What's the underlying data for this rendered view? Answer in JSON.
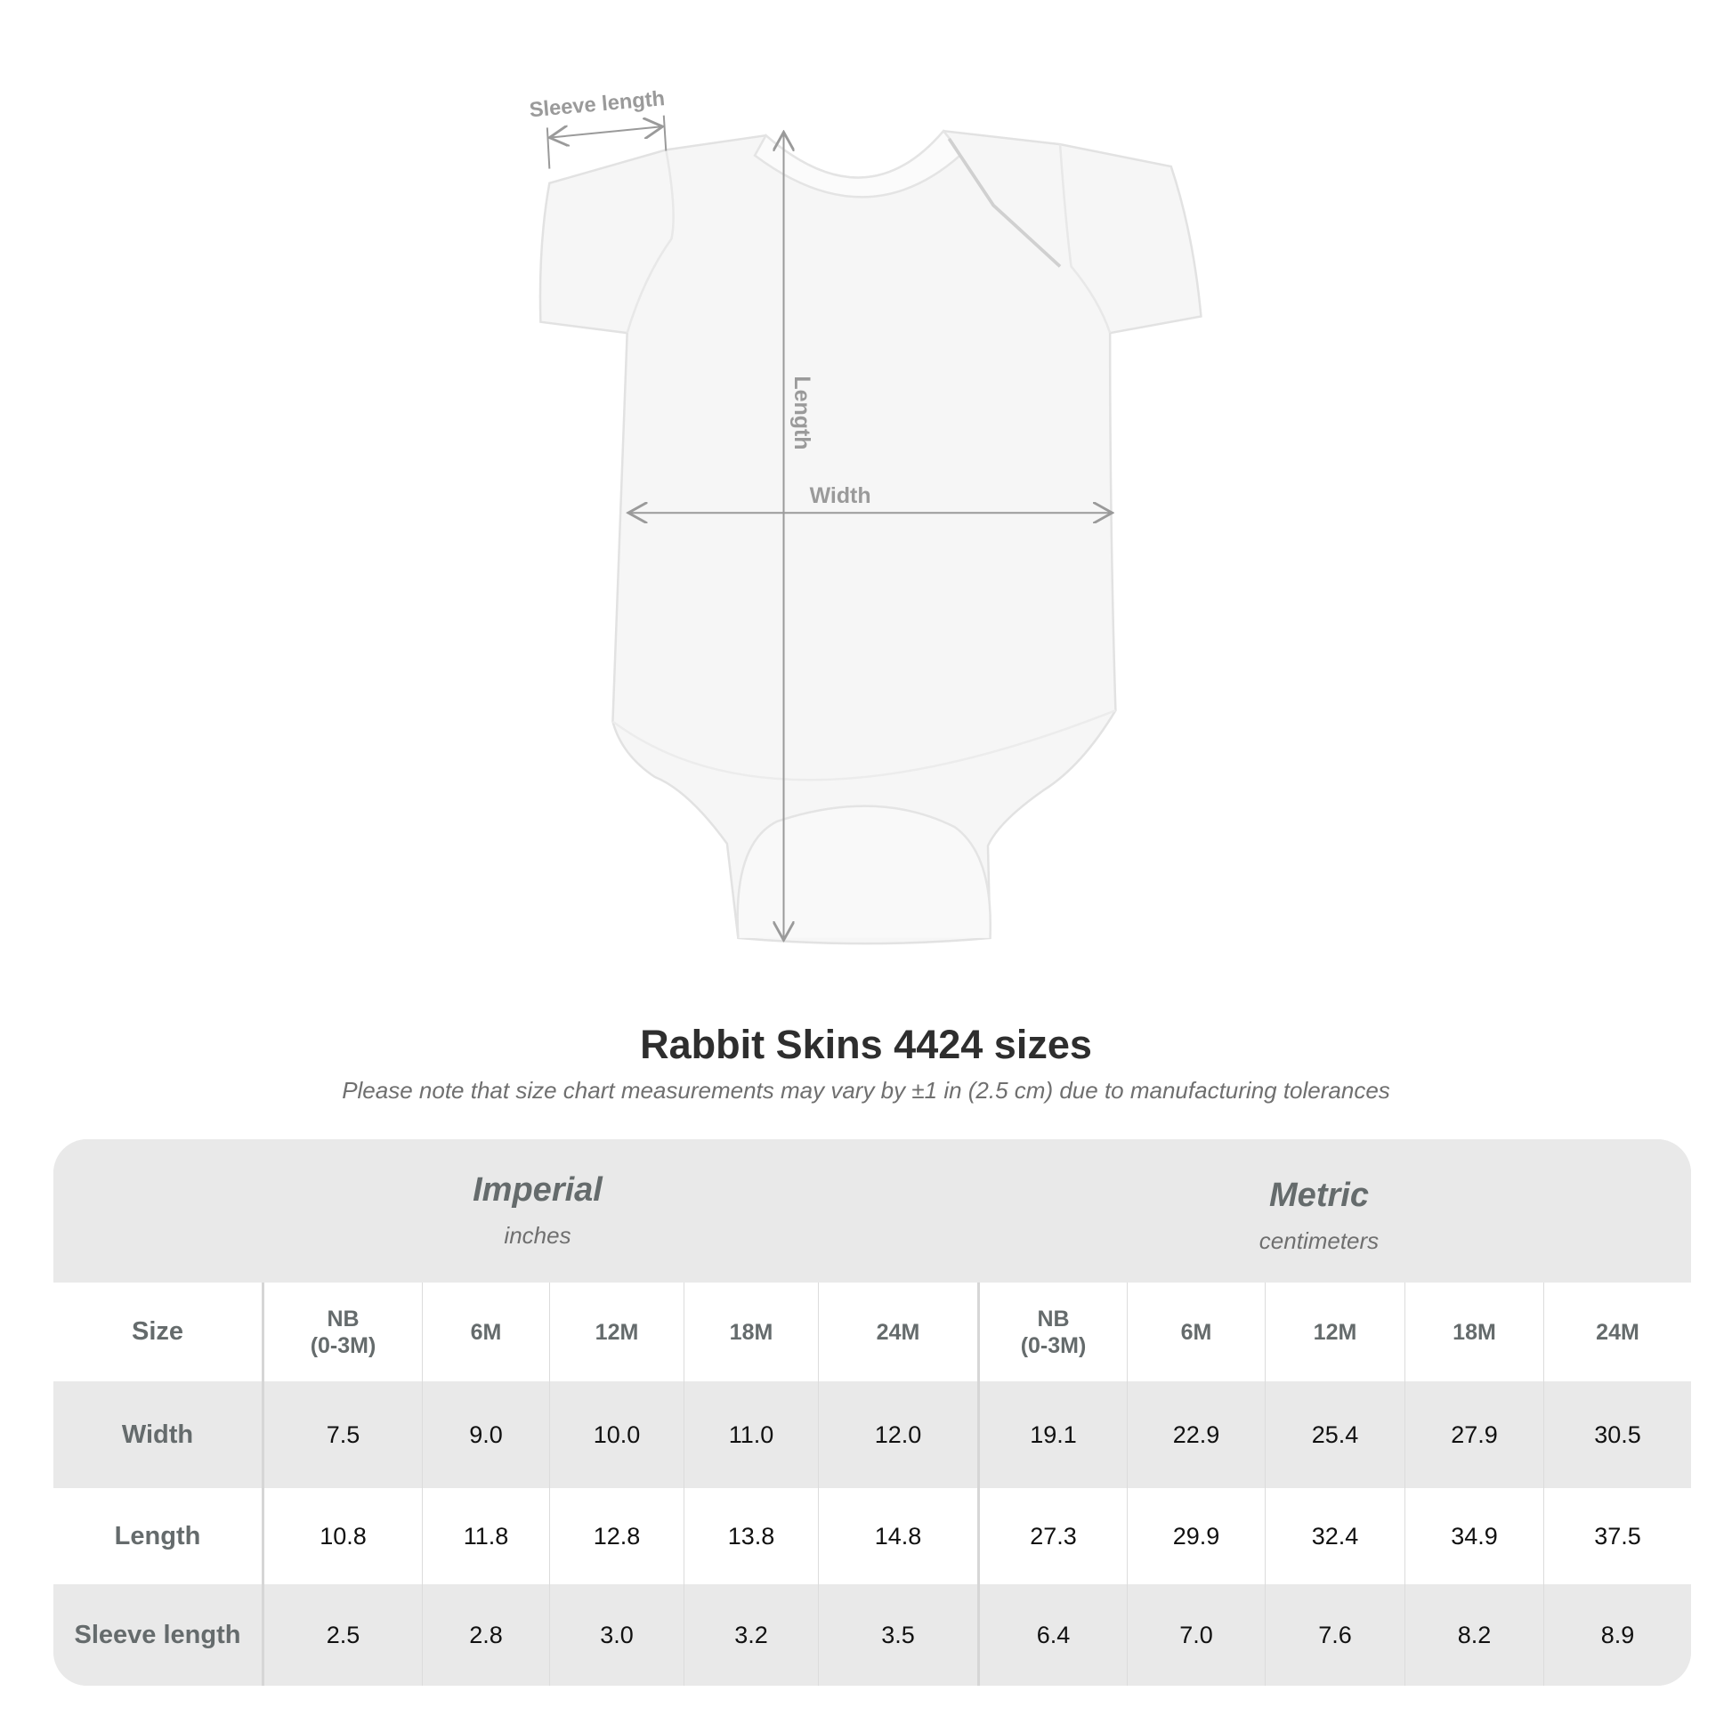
{
  "diagram": {
    "sleeve_label": "Sleeve length",
    "length_label": "Length",
    "width_label": "Width"
  },
  "title": "Rabbit Skins 4424 sizes",
  "subtitle": "Please note that size chart measurements may vary by ±1 in (2.5 cm) due to manufacturing tolerances",
  "table": {
    "imperial": {
      "name": "Imperial",
      "unit": "inches"
    },
    "metric": {
      "name": "Metric",
      "unit": "centimeters"
    },
    "size_label": "Size",
    "sizes": [
      "NB\n(0-3M)",
      "6M",
      "12M",
      "18M",
      "24M"
    ],
    "rows": [
      {
        "label": "Width",
        "imperial": [
          "7.5",
          "9.0",
          "10.0",
          "11.0",
          "12.0"
        ],
        "metric": [
          "19.1",
          "22.9",
          "25.4",
          "27.9",
          "30.5"
        ]
      },
      {
        "label": "Length",
        "imperial": [
          "10.8",
          "11.8",
          "12.8",
          "13.8",
          "14.8"
        ],
        "metric": [
          "27.3",
          "29.9",
          "32.4",
          "34.9",
          "37.5"
        ]
      },
      {
        "label": "Sleeve length",
        "imperial": [
          "2.5",
          "2.8",
          "3.0",
          "3.2",
          "3.5"
        ],
        "metric": [
          "6.4",
          "7.0",
          "7.6",
          "8.2",
          "8.9"
        ]
      }
    ]
  },
  "colors": {
    "band": "#e9e9e9",
    "label": "#656b6c",
    "arrow": "#9a9a9a"
  }
}
